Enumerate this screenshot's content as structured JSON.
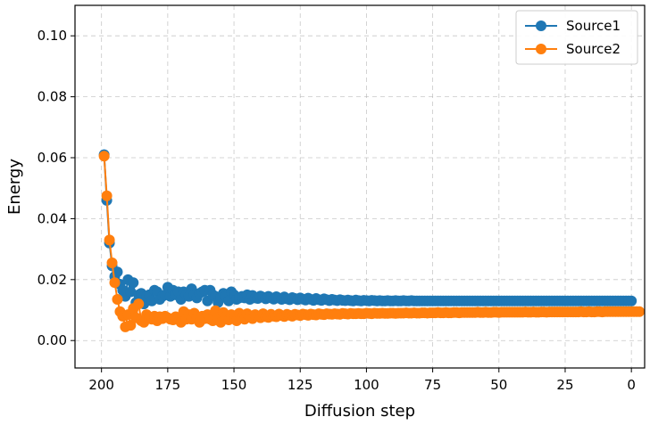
{
  "chart_data": {
    "type": "line",
    "xlabel": "Diffusion step",
    "ylabel": "Energy",
    "xlim": [
      210,
      -5
    ],
    "ylim": [
      -0.009,
      0.11
    ],
    "x_inverted": true,
    "grid": true,
    "grid_style": "dashed",
    "legend_position": "top-right",
    "x_ticks": [
      200,
      175,
      150,
      125,
      100,
      75,
      50,
      25,
      0
    ],
    "x_tick_labels": [
      "200",
      "175",
      "150",
      "125",
      "100",
      "75",
      "50",
      "25",
      "0"
    ],
    "y_ticks": [
      0.0,
      0.02,
      0.04,
      0.06,
      0.08,
      0.1
    ],
    "y_tick_labels": [
      "0.00",
      "0.02",
      "0.04",
      "0.06",
      "0.08",
      "0.10"
    ],
    "steps_start": 199,
    "steps_end": 0,
    "series": [
      {
        "name": "Source1",
        "color": "#1f77b4",
        "values": [
          0.061,
          0.046,
          0.032,
          0.0245,
          0.021,
          0.0225,
          0.0185,
          0.0165,
          0.0145,
          0.02,
          0.016,
          0.019,
          0.0125,
          0.015,
          0.0155,
          0.012,
          0.0145,
          0.015,
          0.013,
          0.0165,
          0.016,
          0.0135,
          0.0145,
          0.015,
          0.0175,
          0.0145,
          0.0165,
          0.015,
          0.016,
          0.0135,
          0.016,
          0.015,
          0.0145,
          0.017,
          0.015,
          0.014,
          0.0155,
          0.016,
          0.0165,
          0.013,
          0.0165,
          0.015,
          0.0145,
          0.0125,
          0.014,
          0.0155,
          0.0145,
          0.013,
          0.016,
          0.015,
          0.0135,
          0.014,
          0.0145,
          0.014,
          0.015,
          0.0135,
          0.0148,
          0.014,
          0.0138,
          0.0146,
          0.0142,
          0.0137,
          0.0145,
          0.014,
          0.0136,
          0.0144,
          0.0139,
          0.0135,
          0.0143,
          0.0137,
          0.0134,
          0.0141,
          0.0138,
          0.0134,
          0.014,
          0.0136,
          0.0133,
          0.0139,
          0.0135,
          0.0132,
          0.0138,
          0.0134,
          0.0132,
          0.0137,
          0.0134,
          0.0131,
          0.0135,
          0.0133,
          0.0131,
          0.0134,
          0.0132,
          0.0131,
          0.0133,
          0.0131,
          0.013,
          0.0133,
          0.0131,
          0.013,
          0.0132,
          0.0131,
          0.013,
          0.0132,
          0.0131,
          0.013,
          0.0131,
          0.013,
          0.013,
          0.0131,
          0.013,
          0.013,
          0.0131,
          0.013,
          0.013,
          0.0131,
          0.013,
          0.013,
          0.0131,
          0.013,
          0.013,
          0.013,
          0.013,
          0.013,
          0.013,
          0.013,
          0.013,
          0.013,
          0.013,
          0.013,
          0.013,
          0.013,
          0.013,
          0.013,
          0.013,
          0.013,
          0.013,
          0.013,
          0.013,
          0.013,
          0.013,
          0.013,
          0.013,
          0.013,
          0.013,
          0.013,
          0.013,
          0.013,
          0.013,
          0.013,
          0.013,
          0.013,
          0.013,
          0.013,
          0.013,
          0.013,
          0.013,
          0.013,
          0.013,
          0.013,
          0.013,
          0.013,
          0.013,
          0.013,
          0.013,
          0.013,
          0.013,
          0.013,
          0.013,
          0.013,
          0.013,
          0.013,
          0.013,
          0.013,
          0.013,
          0.013,
          0.013,
          0.013,
          0.013,
          0.013,
          0.013,
          0.013,
          0.013,
          0.013,
          0.013,
          0.013,
          0.013,
          0.013,
          0.013,
          0.013,
          0.013,
          0.013,
          0.013,
          0.013,
          0.013,
          0.013,
          0.013,
          0.013,
          0.013,
          0.013,
          0.013,
          0.013
        ]
      },
      {
        "name": "Source2",
        "color": "#ff7f0e",
        "values": [
          0.0605,
          0.0475,
          0.033,
          0.0255,
          0.019,
          0.0135,
          0.0095,
          0.008,
          0.0045,
          0.0085,
          0.005,
          0.0105,
          0.0075,
          0.012,
          0.0065,
          0.006,
          0.0085,
          0.0075,
          0.007,
          0.008,
          0.0065,
          0.0078,
          0.0072,
          0.008,
          0.0075,
          0.007,
          0.0068,
          0.0078,
          0.0072,
          0.006,
          0.0095,
          0.007,
          0.0085,
          0.007,
          0.009,
          0.0075,
          0.006,
          0.008,
          0.0072,
          0.0085,
          0.007,
          0.0065,
          0.0098,
          0.0075,
          0.006,
          0.0092,
          0.0078,
          0.0068,
          0.0085,
          0.0072,
          0.0065,
          0.009,
          0.0075,
          0.007,
          0.0088,
          0.0078,
          0.0072,
          0.0085,
          0.008,
          0.0075,
          0.0088,
          0.0078,
          0.0076,
          0.0086,
          0.008,
          0.0078,
          0.0087,
          0.0082,
          0.0079,
          0.0086,
          0.0083,
          0.008,
          0.0086,
          0.0084,
          0.0082,
          0.0087,
          0.0085,
          0.0083,
          0.0087,
          0.0085,
          0.0084,
          0.0088,
          0.0086,
          0.0085,
          0.0088,
          0.0087,
          0.0086,
          0.0088,
          0.0087,
          0.0086,
          0.0089,
          0.0088,
          0.0087,
          0.0089,
          0.0088,
          0.0088,
          0.0089,
          0.0088,
          0.0088,
          0.009,
          0.0089,
          0.0088,
          0.009,
          0.0089,
          0.0089,
          0.009,
          0.0089,
          0.0089,
          0.009,
          0.009,
          0.0089,
          0.009,
          0.009,
          0.009,
          0.0091,
          0.009,
          0.009,
          0.0091,
          0.009,
          0.009,
          0.0091,
          0.0091,
          0.009,
          0.0091,
          0.0091,
          0.0091,
          0.0092,
          0.0091,
          0.0091,
          0.0092,
          0.0091,
          0.0091,
          0.0092,
          0.0092,
          0.0091,
          0.0092,
          0.0092,
          0.0092,
          0.0092,
          0.0092,
          0.0092,
          0.0093,
          0.0092,
          0.0092,
          0.0093,
          0.0092,
          0.0092,
          0.0093,
          0.0093,
          0.0092,
          0.0093,
          0.0093,
          0.0093,
          0.0093,
          0.0093,
          0.0093,
          0.0093,
          0.0093,
          0.0093,
          0.0094,
          0.0093,
          0.0093,
          0.0094,
          0.0093,
          0.0093,
          0.0094,
          0.0094,
          0.0093,
          0.0094,
          0.0094,
          0.0094,
          0.0094,
          0.0094,
          0.0094,
          0.0094,
          0.0094,
          0.0094,
          0.0094,
          0.0094,
          0.0094,
          0.0095,
          0.0094,
          0.0094,
          0.0095,
          0.0094,
          0.0094,
          0.0095,
          0.0095,
          0.0094,
          0.0095,
          0.0095,
          0.0095,
          0.0095,
          0.0095,
          0.0095,
          0.0095,
          0.0095,
          0.0095,
          0.0095,
          0.0095,
          0.0095,
          0.0095,
          0.0095
        ]
      }
    ]
  }
}
